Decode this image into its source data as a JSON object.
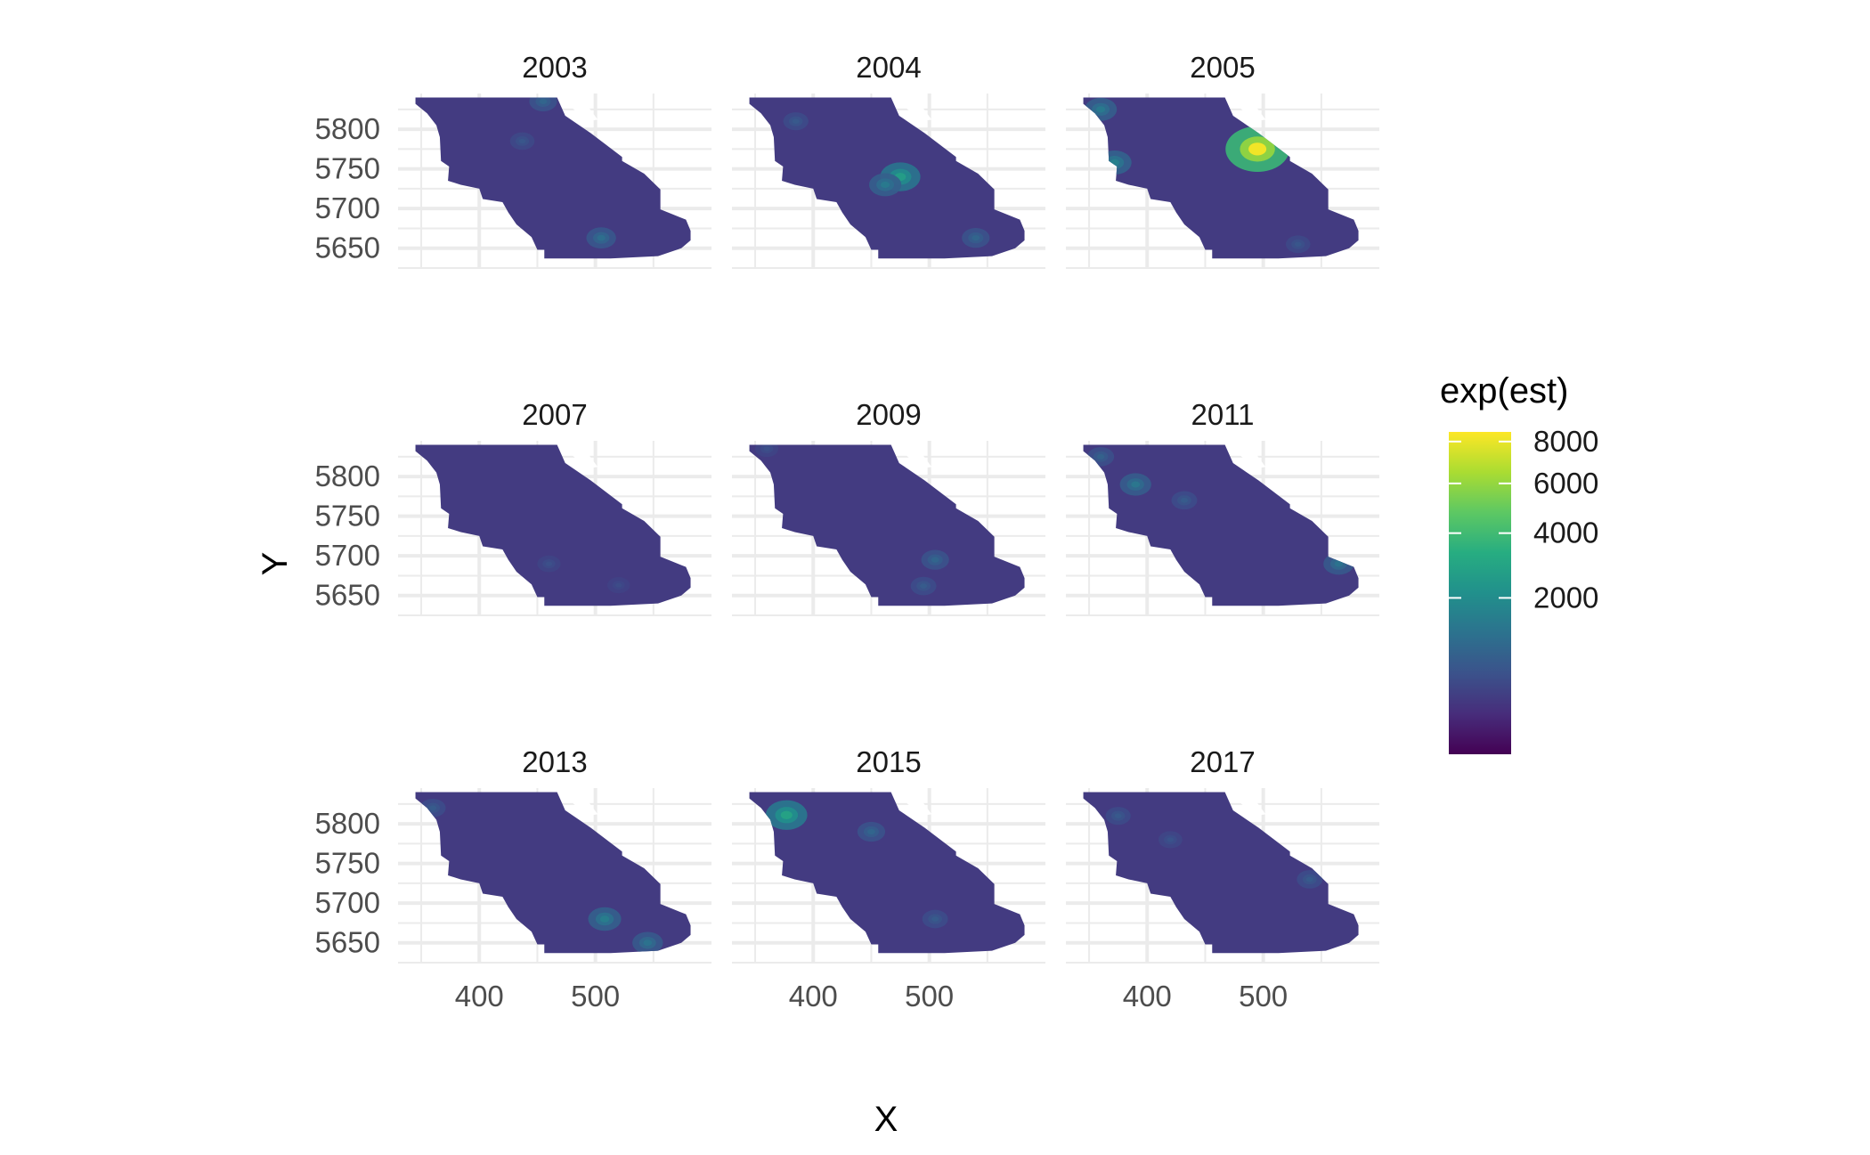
{
  "chart_data": {
    "type": "heatmap",
    "title": "",
    "xlabel": "X",
    "ylabel": "Y",
    "xlim": [
      330,
      600
    ],
    "ylim": [
      5625,
      5845
    ],
    "x_ticks": [
      400,
      500
    ],
    "y_ticks": [
      5650,
      5700,
      5750,
      5800
    ],
    "grid": true,
    "facets": [
      "2003",
      "2004",
      "2005",
      "2007",
      "2009",
      "2011",
      "2013",
      "2015",
      "2017"
    ],
    "facet_layout": {
      "rows": 3,
      "cols": 3
    },
    "region_outline": [
      [
        345,
        5840
      ],
      [
        467,
        5840
      ],
      [
        474,
        5817
      ],
      [
        496,
        5795
      ],
      [
        523,
        5765
      ],
      [
        523,
        5760
      ],
      [
        542,
        5744
      ],
      [
        556,
        5724
      ],
      [
        556,
        5699
      ],
      [
        566,
        5693
      ],
      [
        578,
        5686
      ],
      [
        582,
        5672
      ],
      [
        582,
        5660
      ],
      [
        574,
        5650
      ],
      [
        554,
        5640
      ],
      [
        513,
        5637
      ],
      [
        456,
        5637
      ],
      [
        456,
        5648
      ],
      [
        450,
        5648
      ],
      [
        445,
        5664
      ],
      [
        432,
        5680
      ],
      [
        425,
        5695
      ],
      [
        420,
        5708
      ],
      [
        403,
        5712
      ],
      [
        400,
        5725
      ],
      [
        384,
        5730
      ],
      [
        373,
        5735
      ],
      [
        374,
        5753
      ],
      [
        367,
        5760
      ],
      [
        366,
        5790
      ],
      [
        363,
        5805
      ],
      [
        355,
        5820
      ],
      [
        345,
        5832
      ]
    ],
    "notch_outline": [
      [
        478,
        5840
      ],
      [
        488,
        5840
      ],
      [
        502,
        5812
      ],
      [
        493,
        5810
      ],
      [
        479,
        5828
      ]
    ],
    "base_value": 250,
    "hotspots": [
      {
        "facet": "2003",
        "x": 455,
        "y": 5835,
        "value": 900
      },
      {
        "facet": "2003",
        "x": 505,
        "y": 5663,
        "value": 1100
      },
      {
        "facet": "2003",
        "x": 437,
        "y": 5785,
        "value": 600
      },
      {
        "facet": "2004",
        "x": 475,
        "y": 5740,
        "value": 2600
      },
      {
        "facet": "2004",
        "x": 462,
        "y": 5730,
        "value": 1400
      },
      {
        "facet": "2004",
        "x": 540,
        "y": 5663,
        "value": 900
      },
      {
        "facet": "2004",
        "x": 385,
        "y": 5810,
        "value": 650
      },
      {
        "facet": "2005",
        "x": 495,
        "y": 5775,
        "value": 8200
      },
      {
        "facet": "2005",
        "x": 360,
        "y": 5825,
        "value": 1400
      },
      {
        "facet": "2005",
        "x": 372,
        "y": 5758,
        "value": 1600
      },
      {
        "facet": "2005",
        "x": 530,
        "y": 5655,
        "value": 600
      },
      {
        "facet": "2007",
        "x": 460,
        "y": 5690,
        "value": 500
      },
      {
        "facet": "2007",
        "x": 520,
        "y": 5663,
        "value": 450
      },
      {
        "facet": "2009",
        "x": 505,
        "y": 5695,
        "value": 900
      },
      {
        "facet": "2009",
        "x": 495,
        "y": 5662,
        "value": 700
      },
      {
        "facet": "2009",
        "x": 360,
        "y": 5835,
        "value": 500
      },
      {
        "facet": "2011",
        "x": 390,
        "y": 5790,
        "value": 1300
      },
      {
        "facet": "2011",
        "x": 565,
        "y": 5690,
        "value": 1200
      },
      {
        "facet": "2011",
        "x": 360,
        "y": 5825,
        "value": 800
      },
      {
        "facet": "2011",
        "x": 432,
        "y": 5770,
        "value": 700
      },
      {
        "facet": "2013",
        "x": 508,
        "y": 5680,
        "value": 1500
      },
      {
        "facet": "2013",
        "x": 545,
        "y": 5650,
        "value": 1200
      },
      {
        "facet": "2013",
        "x": 360,
        "y": 5820,
        "value": 700
      },
      {
        "facet": "2015",
        "x": 377,
        "y": 5811,
        "value": 2800
      },
      {
        "facet": "2015",
        "x": 450,
        "y": 5790,
        "value": 900
      },
      {
        "facet": "2015",
        "x": 505,
        "y": 5680,
        "value": 700
      },
      {
        "facet": "2017",
        "x": 540,
        "y": 5730,
        "value": 700
      },
      {
        "facet": "2017",
        "x": 375,
        "y": 5810,
        "value": 650
      },
      {
        "facet": "2017",
        "x": 420,
        "y": 5780,
        "value": 550
      }
    ],
    "legend": {
      "title": "exp(est)",
      "placement": "right",
      "scale": "sqrt",
      "range": [
        0,
        8500
      ],
      "breaks": [
        2000,
        4000,
        6000,
        8000
      ],
      "colors": [
        "#440154",
        "#472D7B",
        "#3B528B",
        "#2C728E",
        "#21908C",
        "#27AD81",
        "#5DC863",
        "#AADC32",
        "#FDE725"
      ]
    }
  }
}
